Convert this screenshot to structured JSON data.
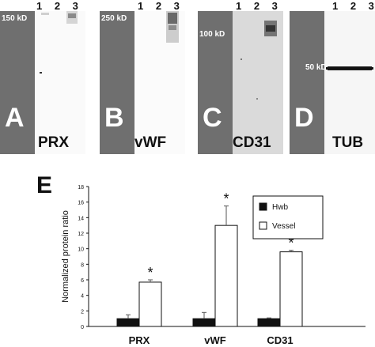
{
  "panels": [
    {
      "letter": "A",
      "name": "PRX",
      "kd": "150 kD",
      "lanes": "1 2 3"
    },
    {
      "letter": "B",
      "name": "vWF",
      "kd": "250 kD",
      "lanes": "1 2 3"
    },
    {
      "letter": "C",
      "name": "CD31",
      "kd": "100 kD",
      "lanes": "1 2 3"
    },
    {
      "letter": "D",
      "name": "TUB",
      "kd": "50 kD",
      "lanes": "1 2 3"
    }
  ],
  "chart_data": {
    "type": "bar",
    "panel_label": "E",
    "categories": [
      "PRX",
      "vWF",
      "CD31"
    ],
    "ylabel": "Normalized protein ratio",
    "ylim": [
      0,
      18
    ],
    "yticks": [
      0,
      2,
      4,
      6,
      8,
      10,
      12,
      14,
      16,
      18
    ],
    "series": [
      {
        "name": "Hwb",
        "color": "#111111",
        "values": [
          1,
          1,
          1
        ],
        "errors": [
          0.5,
          0.8,
          0.1
        ]
      },
      {
        "name": "Vessel",
        "color": "#ffffff",
        "values": [
          5.7,
          13,
          9.6
        ],
        "errors": [
          0.3,
          2.5,
          0.2
        ]
      }
    ],
    "significance": [
      "*",
      "*",
      "*"
    ],
    "legend_position": "top-right"
  }
}
